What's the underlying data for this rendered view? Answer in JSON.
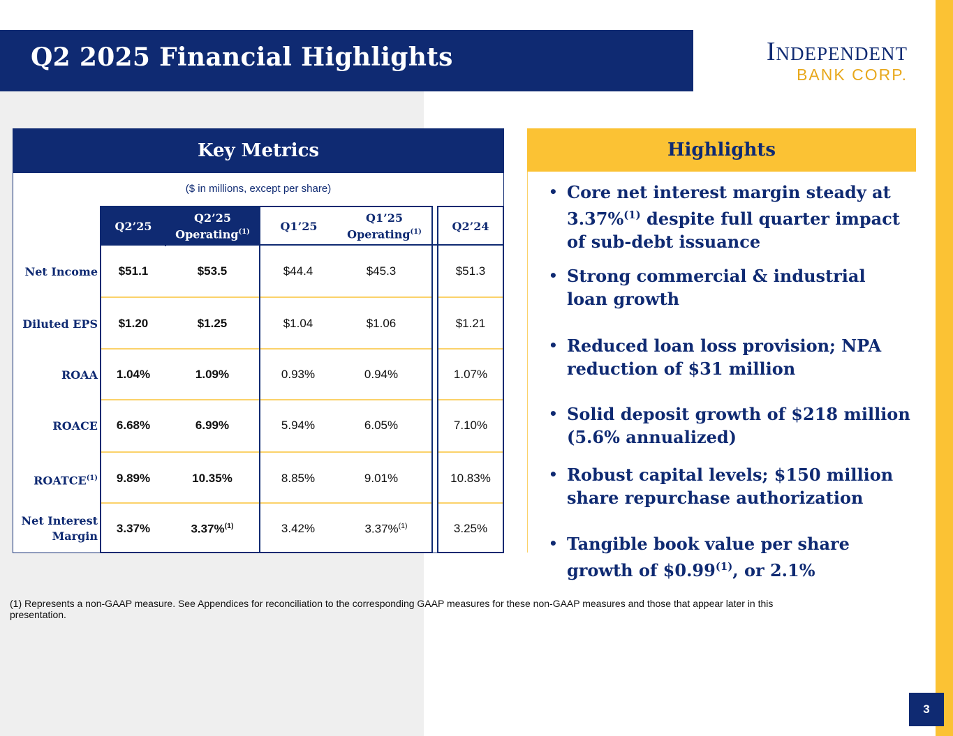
{
  "title": "Q2 2025 Financial Highlights",
  "logo": {
    "line1": "Independent",
    "line2": "BANK CORP."
  },
  "key_metrics": {
    "header": "Key Metrics",
    "units_note": "($ in millions, except per share)",
    "columns": [
      {
        "label": "Q2’25",
        "sup": ""
      },
      {
        "label": "Q2’25 Operating",
        "sup": "(1)"
      },
      {
        "label": "Q1’25",
        "sup": ""
      },
      {
        "label": "Q1’25 Operating",
        "sup": "(1)"
      },
      {
        "label": "Q2’24",
        "sup": ""
      }
    ],
    "rows": [
      {
        "label": "Net Income",
        "sup": "",
        "values": [
          "$51.1",
          "$53.5",
          "$44.4",
          "$45.3",
          "$51.3"
        ],
        "value_sups": [
          "",
          "",
          "",
          "",
          ""
        ]
      },
      {
        "label": "Diluted EPS",
        "sup": "",
        "values": [
          "$1.20",
          "$1.25",
          "$1.04",
          "$1.06",
          "$1.21"
        ],
        "value_sups": [
          "",
          "",
          "",
          "",
          ""
        ]
      },
      {
        "label": "ROAA",
        "sup": "",
        "values": [
          "1.04%",
          "1.09%",
          "0.93%",
          "0.94%",
          "1.07%"
        ],
        "value_sups": [
          "",
          "",
          "",
          "",
          ""
        ]
      },
      {
        "label": "ROACE",
        "sup": "",
        "values": [
          "6.68%",
          "6.99%",
          "5.94%",
          "6.05%",
          "7.10%"
        ],
        "value_sups": [
          "",
          "",
          "",
          "",
          ""
        ]
      },
      {
        "label": "ROATCE",
        "sup": "(1)",
        "values": [
          "9.89%",
          "10.35%",
          "8.85%",
          "9.01%",
          "10.83%"
        ],
        "value_sups": [
          "",
          "",
          "",
          "",
          ""
        ]
      },
      {
        "label": "Net Interest Margin",
        "sup": "",
        "values": [
          "3.37%",
          "3.37%",
          "3.42%",
          "3.37%",
          "3.25%"
        ],
        "value_sups": [
          "",
          "(1)",
          "",
          "(1)",
          ""
        ]
      }
    ]
  },
  "highlights": {
    "header": "Highlights",
    "bullets": [
      {
        "pre": "Core net interest margin steady at 3.37%",
        "sup": "(1)",
        "post": " despite full quarter impact of sub-debt issuance"
      },
      {
        "pre": "Strong commercial & industrial loan growth",
        "sup": "",
        "post": ""
      },
      {
        "pre": "Reduced loan loss provision; NPA reduction of $31 million",
        "sup": "",
        "post": ""
      },
      {
        "pre": "Solid deposit growth of $218 million (5.6% annualized)",
        "sup": "",
        "post": ""
      },
      {
        "pre": "Robust capital levels; $150 million share repurchase authorization",
        "sup": "",
        "post": ""
      },
      {
        "pre": "Tangible book value per share growth of $0.99",
        "sup": "(1)",
        "post": ", or 2.1%"
      }
    ]
  },
  "footnote": "(1) Represents a non-GAAP measure.  See Appendices for reconciliation to the corresponding GAAP measures for these non-GAAP measures and those that appear later in this presentation.",
  "page_number": "3",
  "colors": {
    "navy": "#0f2a72",
    "gold": "#fbc234",
    "panel_gray": "#efefef"
  }
}
